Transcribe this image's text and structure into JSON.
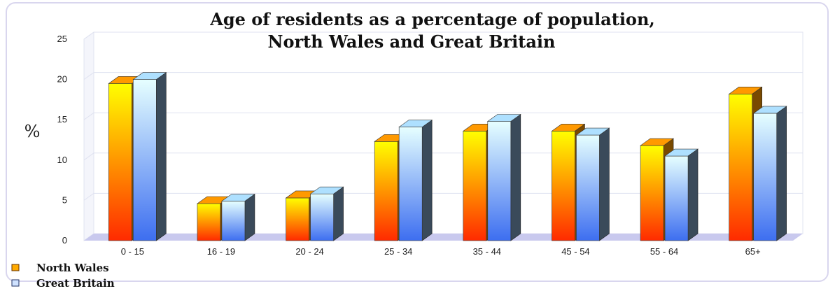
{
  "chart_data": {
    "type": "bar",
    "title_lines": [
      "Age of residents as a percentage of population,",
      "North Wales and Great Britain"
    ],
    "ylabel": "%",
    "xlabel": "",
    "ylim": [
      0,
      25
    ],
    "yticks": [
      0,
      5,
      10,
      15,
      20,
      25
    ],
    "grid": true,
    "legend_position": "bottom-left",
    "categories": [
      "0 - 15",
      "16 - 19",
      "20 - 24",
      "25 - 34",
      "35 - 44",
      "45 - 54",
      "55 - 64",
      "65+"
    ],
    "series": [
      {
        "name": "North Wales",
        "values": [
          19.5,
          4.6,
          5.3,
          12.3,
          13.6,
          13.6,
          11.8,
          18.2
        ],
        "color_top": "#ffff00",
        "color_bottom": "#ff2a00"
      },
      {
        "name": "Great Britain",
        "values": [
          20.0,
          4.9,
          5.8,
          14.1,
          14.8,
          13.1,
          10.5,
          15.8
        ],
        "color_top": "#e6ffff",
        "color_bottom": "#3d6ef0"
      }
    ]
  }
}
